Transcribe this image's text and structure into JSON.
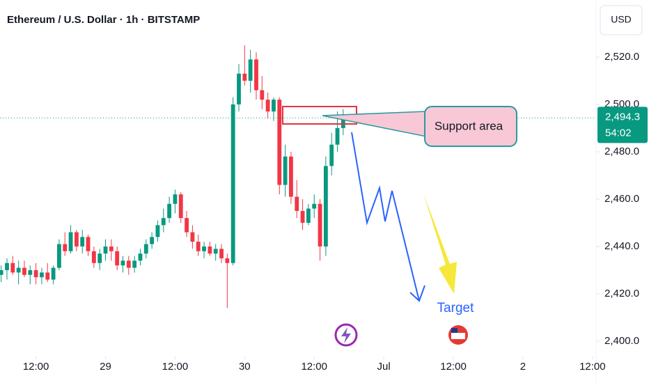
{
  "chart_data": {
    "type": "candlestick",
    "title": "Ethereum / U.S. Dollar · 1h · BITSTAMP",
    "currency": "USD",
    "up_color": "#089981",
    "down_color": "#f23645",
    "xlim": [
      -6.2,
      96.5
    ],
    "ylim": [
      2394.1,
      2544.1
    ],
    "xticks": [
      {
        "value": 0,
        "label": "12:00"
      },
      {
        "value": 12,
        "label": "29"
      },
      {
        "value": 24,
        "label": "12:00"
      },
      {
        "value": 36,
        "label": "30"
      },
      {
        "value": 48,
        "label": "12:00"
      },
      {
        "value": 60,
        "label": "Jul"
      },
      {
        "value": 72,
        "label": "12:00"
      },
      {
        "value": 84,
        "label": "2"
      },
      {
        "value": 96,
        "label": "12:00"
      }
    ],
    "yticks": [
      {
        "value": 2400,
        "label": "2,400.0"
      },
      {
        "value": 2420,
        "label": "2,420.0"
      },
      {
        "value": 2440,
        "label": "2,440.0"
      },
      {
        "value": 2460,
        "label": "2,460.0"
      },
      {
        "value": 2480,
        "label": "2,480.0"
      },
      {
        "value": 2500,
        "label": "2,500.0"
      },
      {
        "value": 2520,
        "label": "2,520.0"
      }
    ],
    "x": [
      -6,
      -5,
      -4,
      -3,
      -2,
      -1,
      0,
      1,
      2,
      3,
      4,
      5,
      6,
      7,
      8,
      9,
      10,
      11,
      12,
      13,
      14,
      15,
      16,
      17,
      18,
      19,
      20,
      21,
      22,
      23,
      24,
      25,
      26,
      27,
      28,
      29,
      30,
      31,
      32,
      33,
      34,
      35,
      36,
      37,
      38,
      39,
      40,
      41,
      42,
      43,
      44,
      45,
      46,
      47,
      48,
      49,
      50,
      51,
      52,
      53
    ],
    "open": [
      2428,
      2430,
      2433,
      2429,
      2431,
      2428,
      2430,
      2427,
      2429,
      2426,
      2431,
      2441,
      2438,
      2446,
      2440,
      2444,
      2438,
      2433,
      2437,
      2440,
      2438,
      2432,
      2434,
      2431,
      2434,
      2437,
      2441,
      2444,
      2449,
      2452,
      2458,
      2462,
      2452,
      2446,
      2442,
      2438,
      2440,
      2437,
      2439,
      2435,
      2433,
      2500,
      2513,
      2510,
      2519,
      2506,
      2502,
      2497,
      2502,
      2466,
      2478,
      2461,
      2455,
      2450,
      2456,
      2458,
      2440,
      2474,
      2483,
      2490
    ],
    "high": [
      2432,
      2435,
      2436,
      2434,
      2434,
      2432,
      2433,
      2431,
      2433,
      2432,
      2443,
      2446,
      2449,
      2447,
      2447,
      2445,
      2440,
      2439,
      2443,
      2443,
      2440,
      2436,
      2436,
      2436,
      2439,
      2443,
      2446,
      2451,
      2456,
      2461,
      2464,
      2463,
      2455,
      2449,
      2445,
      2442,
      2442,
      2441,
      2441,
      2437,
      2503,
      2517,
      2525,
      2523,
      2522,
      2512,
      2505,
      2503,
      2503,
      2483,
      2480,
      2468,
      2460,
      2458,
      2462,
      2460,
      2478,
      2488,
      2497,
      2498
    ],
    "low": [
      2425,
      2426,
      2428,
      2424,
      2427,
      2424,
      2424,
      2424,
      2425,
      2424,
      2430,
      2436,
      2437,
      2438,
      2437,
      2436,
      2431,
      2430,
      2434,
      2434,
      2430,
      2429,
      2428,
      2429,
      2432,
      2435,
      2439,
      2442,
      2446,
      2450,
      2454,
      2450,
      2444,
      2439,
      2436,
      2435,
      2436,
      2434,
      2433,
      2414,
      2432,
      2497,
      2508,
      2505,
      2502,
      2498,
      2494,
      2493,
      2462,
      2461,
      2458,
      2452,
      2447,
      2449,
      2452,
      2434,
      2436,
      2470,
      2480,
      2487
    ],
    "close": [
      2430,
      2433,
      2429,
      2431,
      2428,
      2430,
      2427,
      2429,
      2426,
      2431,
      2441,
      2438,
      2446,
      2440,
      2444,
      2438,
      2433,
      2437,
      2440,
      2438,
      2432,
      2434,
      2431,
      2434,
      2437,
      2441,
      2444,
      2449,
      2452,
      2458,
      2462,
      2452,
      2446,
      2442,
      2438,
      2440,
      2437,
      2439,
      2435,
      2433,
      2500,
      2513,
      2510,
      2519,
      2506,
      2502,
      2497,
      2502,
      2466,
      2478,
      2461,
      2455,
      2450,
      2456,
      2458,
      2440,
      2474,
      2483,
      2490,
      2494.3
    ],
    "last_price": {
      "value": 2494.3,
      "label": "2,494.3"
    },
    "countdown": "54:02",
    "annotations": {
      "support": "Support area",
      "target": "Target"
    }
  }
}
